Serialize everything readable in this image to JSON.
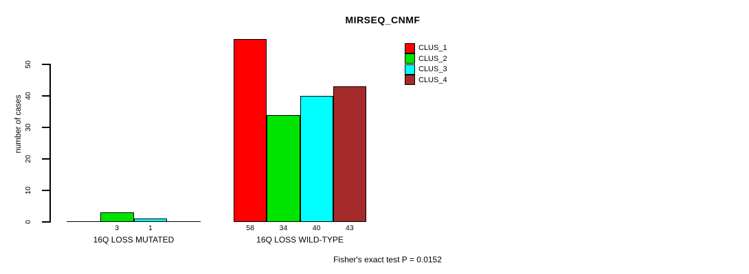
{
  "title": "MIRSEQ_CNMF",
  "annotation": "Fisher's exact test P = 0.0152",
  "colors": {
    "clus_1": "#FF0000",
    "clus_2": "#00E400",
    "clus_3": "#00FFFF",
    "clus_4": "#A52A2A",
    "axis": "#000000",
    "background": "#FFFFFF"
  },
  "chart_data": {
    "type": "bar",
    "title": "MIRSEQ_CNMF",
    "xlabel": "",
    "ylabel": "number of cases",
    "ylim": [
      0,
      58
    ],
    "yticks": [
      0,
      10,
      20,
      30,
      40,
      50
    ],
    "grid": false,
    "legend_position": "top-right",
    "categories": [
      "16Q LOSS MUTATED",
      "16Q LOSS WILD-TYPE"
    ],
    "series": [
      {
        "name": "CLUS_1",
        "color": "#FF0000",
        "values": [
          0,
          58
        ]
      },
      {
        "name": "CLUS_2",
        "color": "#00E400",
        "values": [
          3,
          34
        ]
      },
      {
        "name": "CLUS_3",
        "color": "#00FFFF",
        "values": [
          1,
          40
        ]
      },
      {
        "name": "CLUS_4",
        "color": "#A52A2A",
        "values": [
          0,
          43
        ]
      }
    ],
    "bar_value_labels": {
      "16Q LOSS MUTATED": [
        null,
        3,
        1,
        null
      ],
      "16Q LOSS WILD-TYPE": [
        58,
        34,
        40,
        43
      ]
    },
    "annotation": "Fisher's exact test P = 0.0152"
  }
}
